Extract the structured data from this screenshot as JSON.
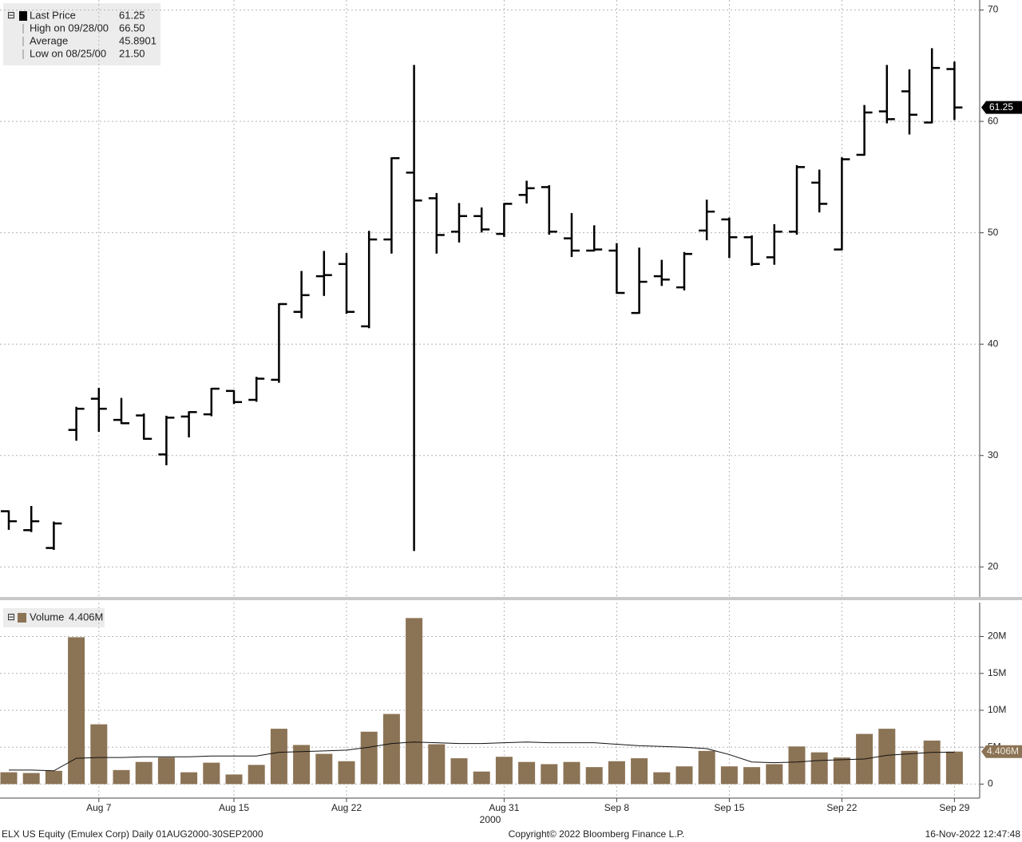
{
  "chart_data": [
    {
      "type": "ohlc",
      "legend": [
        {
          "label": "Last Price",
          "value": 61.25
        },
        {
          "label": "High on 09/28/00",
          "value": 66.5,
          "value_label": "66.50"
        },
        {
          "label": "Average",
          "value": 45.8901
        },
        {
          "label": "Low on 08/25/00",
          "value": 21.5,
          "value_label": "21.50"
        }
      ],
      "color": "#000000",
      "open": [
        25.0,
        23.3,
        21.7,
        32.3,
        35.1,
        33.2,
        33.6,
        30.1,
        33.5,
        33.7,
        35.8,
        35.0,
        36.8,
        42.9,
        46.1,
        47.2,
        41.6,
        49.4,
        55.4,
        53.1,
        50.1,
        51.5,
        49.9,
        53.4,
        54.1,
        49.5,
        48.4,
        48.4,
        42.8,
        46.1,
        45.1,
        50.2,
        51.2,
        49.6,
        47.8,
        50.1,
        54.5,
        48.5,
        57.0,
        60.9,
        62.7,
        59.9,
        64.7
      ],
      "high": [
        25.0,
        25.4,
        24.0,
        34.3,
        36.0,
        35.1,
        33.7,
        33.5,
        33.9,
        36.0,
        35.8,
        37.0,
        43.6,
        46.5,
        48.3,
        48.1,
        50.1,
        56.7,
        65.0,
        53.5,
        52.6,
        52.2,
        52.6,
        54.6,
        54.2,
        51.7,
        50.6,
        49.0,
        48.6,
        47.5,
        48.2,
        52.9,
        51.3,
        49.7,
        50.7,
        56.0,
        55.6,
        56.7,
        61.4,
        65.0,
        64.6,
        66.5,
        65.3
      ],
      "low": [
        23.4,
        23.2,
        21.6,
        31.4,
        32.2,
        32.9,
        31.5,
        29.2,
        31.7,
        33.6,
        34.7,
        34.9,
        36.6,
        42.4,
        44.4,
        42.8,
        41.5,
        48.2,
        21.5,
        48.2,
        49.2,
        50.1,
        49.7,
        52.7,
        49.9,
        47.9,
        48.4,
        44.6,
        42.8,
        45.3,
        44.9,
        49.4,
        47.8,
        47.1,
        47.2,
        49.9,
        51.9,
        48.5,
        57.0,
        59.9,
        58.9,
        59.9,
        60.2
      ],
      "close": [
        24.1,
        24.1,
        23.9,
        34.2,
        34.2,
        32.9,
        31.5,
        33.4,
        33.9,
        36.0,
        34.8,
        36.9,
        43.6,
        44.4,
        46.2,
        42.9,
        49.4,
        56.7,
        52.9,
        49.8,
        51.5,
        50.3,
        52.6,
        54.0,
        50.1,
        48.4,
        48.5,
        44.6,
        45.6,
        45.8,
        48.1,
        51.9,
        49.6,
        47.2,
        50.1,
        55.9,
        52.6,
        56.6,
        60.8,
        60.2,
        60.6,
        64.8,
        61.25
      ],
      "ylim": [
        17.3,
        70.9
      ],
      "yticks": [
        20,
        30,
        40,
        50,
        60,
        70
      ],
      "grid": true
    },
    {
      "type": "bar",
      "legend": {
        "label": "Volume",
        "value": 4.406,
        "value_label": "4.406M"
      },
      "categories": [
        null,
        null,
        null,
        null,
        "Aug 7",
        null,
        null,
        null,
        null,
        null,
        "Aug 15",
        null,
        null,
        null,
        null,
        "Aug 22",
        null,
        null,
        null,
        null,
        null,
        null,
        "Aug 31",
        null,
        null,
        null,
        null,
        "Sep 8",
        null,
        null,
        null,
        null,
        "Sep 15",
        null,
        null,
        null,
        null,
        "Sep 22",
        null,
        null,
        null,
        null,
        "Sep 29"
      ],
      "year_label": "2000",
      "color": "#8b7355",
      "values": [
        1.6,
        1.5,
        1.8,
        19.9,
        8.1,
        1.9,
        3.0,
        3.6,
        1.6,
        2.9,
        1.3,
        2.6,
        7.5,
        5.3,
        4.1,
        3.1,
        7.1,
        9.5,
        22.5,
        5.4,
        3.5,
        1.7,
        3.7,
        3.0,
        2.7,
        3.0,
        2.3,
        3.1,
        3.5,
        1.6,
        2.4,
        4.5,
        2.4,
        2.3,
        2.7,
        5.1,
        4.3,
        3.6,
        6.8,
        7.5,
        4.5,
        5.9,
        4.406
      ],
      "average": [
        1.9,
        1.9,
        1.8,
        3.5,
        3.6,
        3.6,
        3.7,
        3.7,
        3.7,
        3.8,
        3.8,
        3.8,
        4.3,
        4.4,
        4.5,
        4.6,
        5.0,
        5.5,
        5.7,
        5.6,
        5.5,
        5.5,
        5.6,
        5.7,
        5.6,
        5.6,
        5.6,
        5.4,
        5.2,
        5.1,
        5.0,
        4.8,
        4.0,
        3.0,
        2.9,
        3.0,
        3.2,
        3.3,
        3.4,
        3.9,
        4.1,
        4.3,
        4.3
      ],
      "ylim": [
        -1.9,
        24.6
      ],
      "yticks": [
        0,
        {
          "value": 5,
          "label": "5M"
        },
        {
          "value": 10,
          "label": "10M"
        },
        {
          "value": 15,
          "label": "15M"
        },
        {
          "value": 20,
          "label": "20M"
        }
      ],
      "grid": true
    }
  ],
  "footer": {
    "left": "ELX US Equity (Emulex Corp)  Daily 01AUG2000-30SEP2000",
    "center": "Copyright© 2022 Bloomberg Finance L.P.",
    "right": "16-Nov-2022 12:47:48"
  }
}
